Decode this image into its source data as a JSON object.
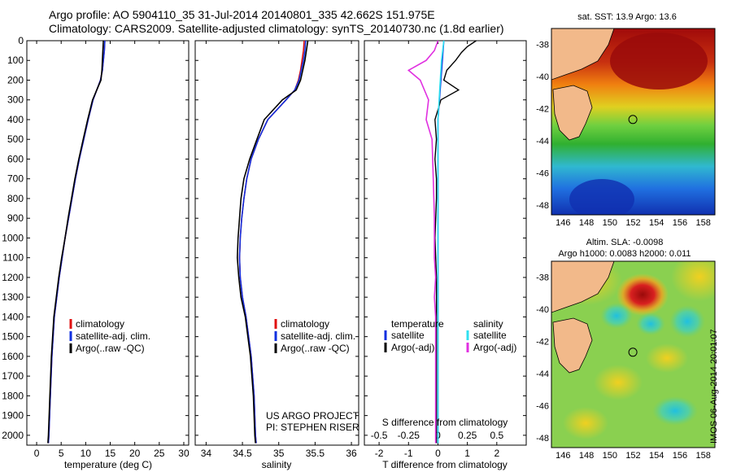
{
  "header": {
    "line1": "Argo profile: AO 5904110_35 31-Jul-2014 20140801_335 42.662S 151.975E",
    "line2": "Climatology: CARS2009. Satellite-adjusted climatology: synTS_20140730.nc (1.8d earlier)"
  },
  "stamp": "IMOS 06-Aug-2014 20:01:07",
  "colors": {
    "climatology": "#e01010",
    "satellite": "#1030e0",
    "argo": "#000000",
    "sal_satellite": "#30e0f0",
    "sal_argo": "#e030e0",
    "land": "#f2b98a"
  },
  "panels": {
    "temperature": {
      "xlabel": "temperature (deg C)",
      "legend": [
        "climatology",
        "satellite-adj. clim.",
        "Argo(..raw -QC)"
      ]
    },
    "salinity": {
      "xlabel": "salinity",
      "legend": [
        "climatology",
        "satellite-adj. clim.",
        "Argo(..raw -QC)"
      ],
      "credit1": "US ARGO PROJECT",
      "credit2": "PI: STEPHEN RISER"
    },
    "difference": {
      "xlabel": "T difference from climatology",
      "xlabel_top": "S difference from climatology",
      "legend_left_title": "temperature",
      "legend_left": [
        "satellite",
        "Argo(-adj)"
      ],
      "legend_right_title": "salinity",
      "legend_right": [
        "satellite",
        "Argo(-adj)"
      ]
    }
  },
  "maps": {
    "sst_title": "sat. SST: 13.9 Argo: 13.6",
    "sla_title1": "Altim. SLA: -0.0098",
    "sla_title2": "Argo h1000: 0.0083 h2000: 0.011",
    "lon_ticks": [
      "146",
      "148",
      "150",
      "152",
      "154",
      "156",
      "158"
    ],
    "lat_ticks": [
      "-38",
      "-40",
      "-42",
      "-44",
      "-46",
      "-48"
    ],
    "argo_position": {
      "lon": 151.975,
      "lat": -42.662
    }
  },
  "chart_data": [
    {
      "type": "line",
      "title": "",
      "xlabel": "temperature (deg C)",
      "ylabel": "",
      "xlim": [
        -2,
        31
      ],
      "ylim": [
        2050,
        0
      ],
      "x_ticks": [
        "0",
        "5",
        "10",
        "15",
        "20",
        "25",
        "30"
      ],
      "y_ticks": [
        "0",
        "100",
        "200",
        "300",
        "400",
        "500",
        "600",
        "700",
        "800",
        "900",
        "1000",
        "1100",
        "1200",
        "1300",
        "1400",
        "1500",
        "1600",
        "1700",
        "1800",
        "1900",
        "2000"
      ],
      "series": [
        {
          "name": "climatology",
          "y": [
            0,
            50,
            100,
            150,
            200,
            300,
            400,
            500,
            600,
            700,
            800,
            900,
            1000,
            1100,
            1200,
            1300,
            1400,
            1600,
            1800,
            2000,
            2040
          ],
          "x": [
            13.9,
            13.8,
            13.6,
            13.4,
            13.0,
            11.5,
            10.5,
            9.6,
            8.7,
            7.9,
            7.2,
            6.5,
            5.8,
            5.2,
            4.6,
            4.1,
            3.6,
            3.1,
            2.8,
            2.5,
            2.4
          ]
        },
        {
          "name": "satellite-adj. clim.",
          "y": [
            0,
            50,
            100,
            150,
            200,
            300,
            400,
            500,
            600,
            700,
            800,
            900,
            1000,
            1100,
            1200,
            1300,
            1400,
            1600,
            1800,
            2000,
            2040
          ],
          "x": [
            13.9,
            13.8,
            13.6,
            13.4,
            13.0,
            11.5,
            10.5,
            9.6,
            8.7,
            7.9,
            7.2,
            6.5,
            5.8,
            5.2,
            4.6,
            4.1,
            3.6,
            3.1,
            2.8,
            2.5,
            2.4
          ]
        },
        {
          "name": "Argo(..raw -QC)",
          "y": [
            0,
            50,
            100,
            150,
            200,
            300,
            400,
            500,
            600,
            700,
            800,
            900,
            1000,
            1100,
            1200,
            1300,
            1400,
            1600,
            1800,
            2000,
            2040
          ],
          "x": [
            13.6,
            13.5,
            13.4,
            13.3,
            13.1,
            11.4,
            10.4,
            9.5,
            8.6,
            7.8,
            7.1,
            6.4,
            5.8,
            5.1,
            4.5,
            4.0,
            3.5,
            3.0,
            2.7,
            2.4,
            2.3
          ]
        }
      ]
    },
    {
      "type": "line",
      "title": "",
      "xlabel": "salinity",
      "ylabel": "",
      "xlim": [
        33.85,
        36.1
      ],
      "ylim": [
        2050,
        0
      ],
      "x_ticks": [
        "34",
        "34.5",
        "35",
        "35.5",
        "36"
      ],
      "series": [
        {
          "name": "climatology",
          "y": [
            0,
            50,
            100,
            150,
            200,
            250,
            300,
            400,
            500,
            600,
            700,
            800,
            900,
            1000,
            1100,
            1200,
            1300,
            1400,
            1600,
            1800,
            2000,
            2040
          ],
          "x": [
            35.35,
            35.34,
            35.32,
            35.3,
            35.27,
            35.22,
            35.1,
            34.85,
            34.72,
            34.62,
            34.56,
            34.52,
            34.49,
            34.47,
            34.46,
            34.47,
            34.5,
            34.55,
            34.62,
            34.66,
            34.68,
            34.69
          ]
        },
        {
          "name": "satellite-adj. clim.",
          "y": [
            0,
            50,
            100,
            150,
            200,
            250,
            300,
            400,
            500,
            600,
            700,
            800,
            900,
            1000,
            1100,
            1200,
            1300,
            1400,
            1600,
            1800,
            2000,
            2040
          ],
          "x": [
            35.37,
            35.36,
            35.34,
            35.31,
            35.28,
            35.22,
            35.1,
            34.85,
            34.72,
            34.62,
            34.56,
            34.52,
            34.49,
            34.47,
            34.46,
            34.47,
            34.5,
            34.55,
            34.62,
            34.66,
            34.68,
            34.69
          ]
        },
        {
          "name": "Argo(..raw -QC)",
          "y": [
            0,
            50,
            100,
            150,
            200,
            250,
            300,
            400,
            500,
            600,
            700,
            800,
            900,
            1000,
            1100,
            1200,
            1300,
            1400,
            1600,
            1800,
            2000,
            2040
          ],
          "x": [
            35.4,
            35.38,
            35.36,
            35.33,
            35.3,
            35.24,
            35.05,
            34.8,
            34.7,
            34.6,
            34.52,
            34.48,
            34.46,
            34.44,
            34.43,
            34.45,
            34.48,
            34.54,
            34.61,
            34.65,
            34.67,
            34.68
          ]
        }
      ]
    },
    {
      "type": "line",
      "title": "",
      "xlabel": "T difference from climatology",
      "xlabel_top": "S difference from climatology",
      "xlim": [
        -2.5,
        3
      ],
      "ylim": [
        2050,
        0
      ],
      "x_ticks": [
        "-2",
        "-1",
        "0",
        "1",
        "2"
      ],
      "x_ticks_top": [
        "-0.5",
        "-0.25",
        "0",
        "0.25",
        "0.5"
      ],
      "series": [
        {
          "name": "temperature satellite",
          "y": [
            0,
            100,
            200,
            300,
            400,
            500,
            600,
            800,
            1000,
            1200,
            1400,
            1600,
            1800,
            2000,
            2040
          ],
          "x": [
            0.2,
            0.15,
            0.1,
            0.05,
            0.0,
            0.0,
            0.0,
            0.0,
            0.0,
            0.0,
            0.0,
            0.0,
            0.0,
            0.0,
            0.0
          ]
        },
        {
          "name": "temperature Argo(-adj)",
          "y": [
            0,
            30,
            60,
            100,
            150,
            200,
            250,
            300,
            350,
            400,
            500,
            600,
            700,
            800,
            1000,
            1200,
            1400,
            1600,
            1800,
            2000,
            2040
          ],
          "x": [
            1.3,
            1.0,
            0.8,
            0.6,
            0.3,
            0.2,
            0.7,
            0.1,
            0.0,
            -0.1,
            -0.05,
            -0.1,
            -0.05,
            -0.05,
            -0.1,
            -0.05,
            -0.05,
            -0.05,
            -0.05,
            -0.05,
            -0.05
          ]
        },
        {
          "name": "salinity satellite",
          "y": [
            0,
            100,
            200,
            300,
            400,
            600,
            800,
            1000,
            1200,
            1400,
            1600,
            1800,
            2000,
            2040
          ],
          "x": [
            0.05,
            0.03,
            0.02,
            0.01,
            0.0,
            0.0,
            0.0,
            0.0,
            0.0,
            0.0,
            0.0,
            0.0,
            0.0,
            0.0
          ]
        },
        {
          "name": "salinity Argo(-adj)",
          "y": [
            0,
            50,
            100,
            150,
            200,
            300,
            400,
            500,
            700,
            900,
            1100,
            1200,
            1300,
            1400,
            1600,
            1800,
            2000,
            2040
          ],
          "x": [
            0.0,
            -0.03,
            -0.1,
            -0.25,
            -0.15,
            -0.08,
            -0.1,
            -0.05,
            -0.04,
            -0.03,
            -0.03,
            -0.02,
            -0.03,
            -0.02,
            -0.02,
            -0.02,
            -0.02,
            -0.02
          ]
        }
      ]
    },
    {
      "type": "heatmap",
      "title": "sat. SST: 13.9 Argo: 13.6",
      "xlim": [
        145,
        159
      ],
      "ylim": [
        -48.6,
        -37
      ]
    },
    {
      "type": "heatmap",
      "title": "Altim. SLA: -0.0098",
      "xlim": [
        145,
        159
      ],
      "ylim": [
        -48.6,
        -37
      ]
    }
  ]
}
